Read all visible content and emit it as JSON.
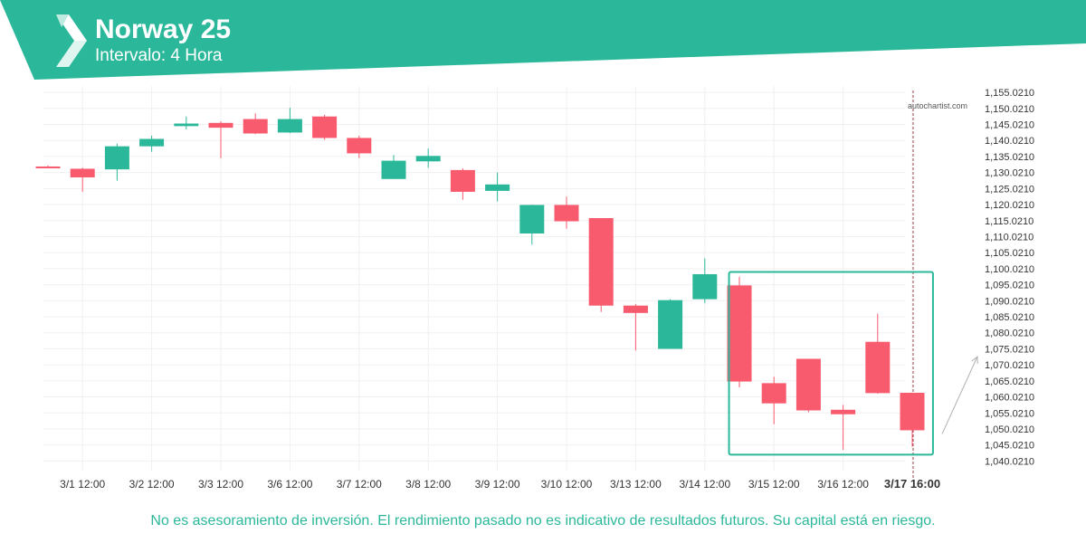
{
  "header": {
    "title": "Norway 25",
    "subtitle": "Intervalo: 4 Hora"
  },
  "watermark": "autochartist.com",
  "disclaimer": "No es asesoramiento de inversión. El rendimiento pasado no es indicativo de resultados futuros. Su capital está en riesgo.",
  "colors": {
    "brand": "#2bb89a",
    "up": "#2bb89a",
    "down": "#f85a6e",
    "grid": "#f0f0f0",
    "text": "#333333"
  },
  "icons": [
    "logo-icon"
  ],
  "chart_data": {
    "type": "candlestick",
    "ylim": [
      1037.021,
      1157.021
    ],
    "y_ticks": [
      "1,155.0210",
      "1,150.0210",
      "1,145.0210",
      "1,140.0210",
      "1,135.0210",
      "1,130.0210",
      "1,125.0210",
      "1,120.0210",
      "1,115.0210",
      "1,110.0210",
      "1,105.0210",
      "1,100.0210",
      "1,095.0210",
      "1,090.0210",
      "1,085.0210",
      "1,080.0210",
      "1,075.0210",
      "1,070.0210",
      "1,065.0210",
      "1,060.0210",
      "1,055.0210",
      "1,050.0210",
      "1,045.0210",
      "1,040.0210"
    ],
    "x_ticks": [
      "3/1 12:00",
      "3/2 12:00",
      "3/3 12:00",
      "3/6 12:00",
      "3/7 12:00",
      "3/8 12:00",
      "3/9 12:00",
      "3/10 12:00",
      "3/13 12:00",
      "3/14 12:00",
      "3/15 12:00",
      "3/16 12:00",
      "3/17 16:00"
    ],
    "candles": [
      {
        "o": 1131.9,
        "h": 1132.2,
        "l": 1131.3,
        "c": 1131.5
      },
      {
        "o": 1131.2,
        "h": 1131.5,
        "l": 1124.0,
        "c": 1128.5
      },
      {
        "o": 1131.0,
        "h": 1139.0,
        "l": 1127.5,
        "c": 1138.2
      },
      {
        "o": 1138.2,
        "h": 1141.5,
        "l": 1136.5,
        "c": 1140.5
      },
      {
        "o": 1144.5,
        "h": 1147.5,
        "l": 1143.5,
        "c": 1145.3
      },
      {
        "o": 1145.5,
        "h": 1146.0,
        "l": 1134.5,
        "c": 1144.0
      },
      {
        "o": 1146.7,
        "h": 1148.5,
        "l": 1142.0,
        "c": 1142.2
      },
      {
        "o": 1142.5,
        "h": 1150.2,
        "l": 1142.3,
        "c": 1146.7
      },
      {
        "o": 1147.5,
        "h": 1148.0,
        "l": 1140.2,
        "c": 1140.8
      },
      {
        "o": 1140.8,
        "h": 1141.5,
        "l": 1134.5,
        "c": 1136.0
      },
      {
        "o": 1128.0,
        "h": 1135.5,
        "l": 1128.0,
        "c": 1133.7
      },
      {
        "o": 1133.5,
        "h": 1137.5,
        "l": 1131.5,
        "c": 1135.2
      },
      {
        "o": 1130.8,
        "h": 1131.3,
        "l": 1121.5,
        "c": 1124.0
      },
      {
        "o": 1124.3,
        "h": 1130.0,
        "l": 1121.0,
        "c": 1126.3
      },
      {
        "o": 1111.0,
        "h": 1120.0,
        "l": 1107.5,
        "c": 1119.9
      },
      {
        "o": 1119.9,
        "h": 1122.5,
        "l": 1112.5,
        "c": 1114.8
      },
      {
        "o": 1115.8,
        "h": 1115.8,
        "l": 1086.5,
        "c": 1088.5
      },
      {
        "o": 1088.5,
        "h": 1089.0,
        "l": 1074.5,
        "c": 1086.2
      },
      {
        "o": 1075.0,
        "h": 1090.5,
        "l": 1075.0,
        "c": 1090.2
      },
      {
        "o": 1090.5,
        "h": 1103.2,
        "l": 1089.3,
        "c": 1098.3
      },
      {
        "o": 1094.8,
        "h": 1097.5,
        "l": 1063.0,
        "c": 1064.8
      },
      {
        "o": 1064.3,
        "h": 1066.3,
        "l": 1051.5,
        "c": 1058.0
      },
      {
        "o": 1071.9,
        "h": 1071.9,
        "l": 1055.2,
        "c": 1055.8
      },
      {
        "o": 1056.0,
        "h": 1057.5,
        "l": 1043.5,
        "c": 1054.6
      },
      {
        "o": 1077.2,
        "h": 1086.0,
        "l": 1061.0,
        "c": 1061.2
      },
      {
        "o": 1061.3,
        "h": 1061.3,
        "l": 1044.5,
        "c": 1049.6
      }
    ],
    "pattern_box": {
      "from_candle": 19.7,
      "to_candle": 25.6,
      "y_top": 1099.0,
      "y_bottom": 1042.0
    },
    "arrow": {
      "from": 1049.6,
      "to": 1072.6
    },
    "current_time_marker": 25.0
  }
}
